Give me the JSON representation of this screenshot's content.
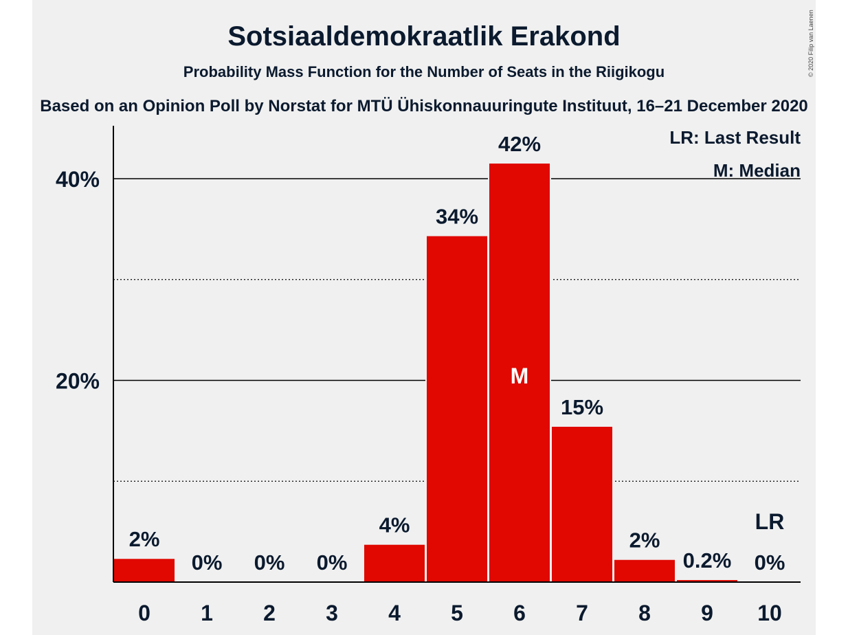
{
  "copyright": "© 2020 Filip van Laenen",
  "chart_data": {
    "type": "bar",
    "title": "Sotsiaaldemokraatlik Erakond",
    "subtitle": "Probability Mass Function for the Number of Seats in the Riigikogu",
    "source": "Based on an Opinion Poll by Norstat for MTÜ Ühiskonnauuringute Instituut, 16–21 December 2020",
    "categories": [
      "0",
      "1",
      "2",
      "3",
      "4",
      "5",
      "6",
      "7",
      "8",
      "9",
      "10"
    ],
    "values": [
      2.3,
      0,
      0,
      0,
      3.7,
      34.3,
      41.5,
      15.4,
      2.2,
      0.2,
      0
    ],
    "data_labels": [
      "2%",
      "0%",
      "0%",
      "0%",
      "4%",
      "34%",
      "42%",
      "15%",
      "2%",
      "0.2%",
      "0%"
    ],
    "ylim": [
      0,
      45
    ],
    "y_ticks": [
      {
        "value": 10,
        "label": "",
        "style": "dotted"
      },
      {
        "value": 20,
        "label": "20%",
        "style": "solid"
      },
      {
        "value": 30,
        "label": "",
        "style": "dotted"
      },
      {
        "value": 40,
        "label": "40%",
        "style": "solid"
      }
    ],
    "bar_color": "#e00800",
    "median_index": 6,
    "median_label": "M",
    "last_result_index": 10,
    "last_result_label": "LR",
    "legend": {
      "placement": "top-right",
      "items": [
        "LR: Last Result",
        "M: Median"
      ]
    }
  }
}
